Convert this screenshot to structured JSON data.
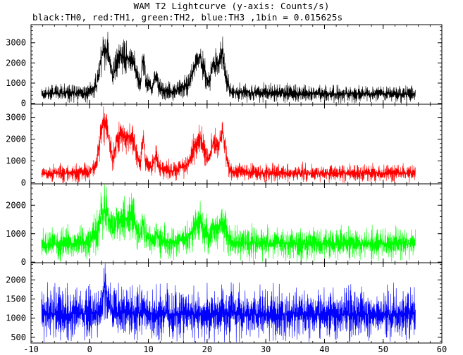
{
  "chart_data": {
    "type": "line",
    "title": "WAM T2 Lightcurve (y-axis: Counts/s)",
    "subtitle": "black:TH0, red:TH1, green:TH2, blue:TH3 ,1bin = 0.015625s",
    "xlim": [
      -10,
      60
    ],
    "x_ticks": [
      -10,
      0,
      10,
      20,
      30,
      40,
      50,
      60
    ],
    "x_start": -8.2,
    "x_end": 55.5,
    "panels": [
      {
        "name": "TH0",
        "color": "#000000",
        "ylim": [
          -50,
          3900
        ],
        "y_ticks": [
          0,
          1000,
          2000,
          3000
        ],
        "profile": [
          [
            -8.2,
            470
          ],
          [
            0,
            510
          ],
          [
            1.2,
            900
          ],
          [
            2.2,
            2600
          ],
          [
            3.0,
            2700
          ],
          [
            4.0,
            1200
          ],
          [
            4.6,
            2100
          ],
          [
            5.3,
            2400
          ],
          [
            6.3,
            2200
          ],
          [
            7.1,
            2300
          ],
          [
            7.8,
            1700
          ],
          [
            8.6,
            900
          ],
          [
            9.1,
            2300
          ],
          [
            9.6,
            1000
          ],
          [
            10.6,
            750
          ],
          [
            11.3,
            1350
          ],
          [
            11.9,
            750
          ],
          [
            14,
            560
          ],
          [
            16.8,
            900
          ],
          [
            18,
            1900
          ],
          [
            18.8,
            2300
          ],
          [
            19.6,
            1600
          ],
          [
            20.3,
            1000
          ],
          [
            21,
            1900
          ],
          [
            22,
            1900
          ],
          [
            22.6,
            2500
          ],
          [
            23.3,
            1300
          ],
          [
            24,
            560
          ],
          [
            30,
            500
          ],
          [
            40,
            480
          ],
          [
            55.5,
            470
          ]
        ],
        "spread": [
          [
            -8.2,
            700
          ],
          [
            30,
            700
          ],
          [
            55.5,
            700
          ]
        ]
      },
      {
        "name": "TH1",
        "color": "#ff0000",
        "ylim": [
          -50,
          3600
        ],
        "y_ticks": [
          0,
          1000,
          2000,
          3000
        ],
        "profile": [
          [
            -8.2,
            420
          ],
          [
            0,
            470
          ],
          [
            1.2,
            900
          ],
          [
            2.2,
            2700
          ],
          [
            3.0,
            2400
          ],
          [
            4.0,
            1100
          ],
          [
            4.6,
            2000
          ],
          [
            5.3,
            2200
          ],
          [
            6.3,
            2000
          ],
          [
            7.1,
            2200
          ],
          [
            7.8,
            1600
          ],
          [
            8.6,
            800
          ],
          [
            9.1,
            2100
          ],
          [
            9.6,
            900
          ],
          [
            10.6,
            700
          ],
          [
            11.3,
            1250
          ],
          [
            11.9,
            700
          ],
          [
            14,
            500
          ],
          [
            16.8,
            850
          ],
          [
            18,
            1800
          ],
          [
            18.8,
            2100
          ],
          [
            19.6,
            1500
          ],
          [
            20.3,
            950
          ],
          [
            21,
            1800
          ],
          [
            22,
            1700
          ],
          [
            22.6,
            2500
          ],
          [
            23.3,
            1200
          ],
          [
            24,
            500
          ],
          [
            30,
            450
          ],
          [
            40,
            440
          ],
          [
            55.5,
            430
          ]
        ],
        "spread": [
          [
            -8.2,
            650
          ],
          [
            30,
            650
          ],
          [
            55.5,
            650
          ]
        ]
      },
      {
        "name": "TH2",
        "color": "#00ff00",
        "ylim": [
          -20,
          2750
        ],
        "y_ticks": [
          0,
          1000,
          2000
        ],
        "profile": [
          [
            -8.2,
            620
          ],
          [
            0,
            680
          ],
          [
            1.2,
            1000
          ],
          [
            2.2,
            1850
          ],
          [
            3.0,
            1700
          ],
          [
            4.0,
            1050
          ],
          [
            4.6,
            1500
          ],
          [
            5.3,
            1550
          ],
          [
            6.3,
            1500
          ],
          [
            7.1,
            1550
          ],
          [
            7.8,
            1300
          ],
          [
            8.6,
            900
          ],
          [
            9.1,
            1450
          ],
          [
            9.6,
            950
          ],
          [
            10.6,
            800
          ],
          [
            11.3,
            1000
          ],
          [
            11.9,
            800
          ],
          [
            14,
            680
          ],
          [
            16.8,
            850
          ],
          [
            18,
            1250
          ],
          [
            18.8,
            1450
          ],
          [
            19.6,
            1100
          ],
          [
            20.3,
            900
          ],
          [
            21,
            1200
          ],
          [
            22,
            1200
          ],
          [
            22.6,
            1500
          ],
          [
            23.3,
            1000
          ],
          [
            24,
            700
          ],
          [
            30,
            660
          ],
          [
            40,
            650
          ],
          [
            55.5,
            640
          ]
        ],
        "spread": [
          [
            -8.2,
            900
          ],
          [
            30,
            900
          ],
          [
            55.5,
            900
          ]
        ]
      },
      {
        "name": "TH3",
        "color": "#0000ff",
        "ylim": [
          350,
          2450
        ],
        "y_ticks": [
          500,
          1000,
          1500,
          2000
        ],
        "profile": [
          [
            -8.2,
            1100
          ],
          [
            0,
            1120
          ],
          [
            2.0,
            1200
          ],
          [
            2.6,
            1900
          ],
          [
            3.0,
            1300
          ],
          [
            4.0,
            1150
          ],
          [
            10,
            1120
          ],
          [
            25,
            1100
          ],
          [
            40,
            1100
          ],
          [
            55.5,
            1100
          ]
        ],
        "spread": [
          [
            -8.2,
            1100
          ],
          [
            30,
            1100
          ],
          [
            55.5,
            1100
          ]
        ]
      }
    ]
  }
}
